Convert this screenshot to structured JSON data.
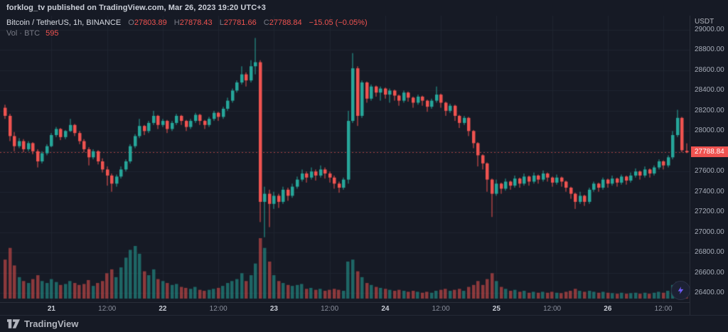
{
  "publish_bar": {
    "text": "forklog_tv published on TradingView.com, Mar 26, 2023 19:20 UTC+3"
  },
  "legend": {
    "symbol": "Bitcoin / TetherUS, 1h, BINANCE",
    "o_label": "O",
    "o": "27803.89",
    "h_label": "H",
    "h": "27878.43",
    "l_label": "L",
    "l": "27781.66",
    "c_label": "C",
    "c": "27788.84",
    "change": "−15.05 (−0.05%)",
    "vol_label": "Vol · BTC",
    "vol_value": "595"
  },
  "price_axis": {
    "currency": "USDT",
    "labels": [
      "29000.00",
      "28800.00",
      "28600.00",
      "28400.00",
      "28200.00",
      "28000.00",
      "27800.00",
      "27600.00",
      "27400.00",
      "27200.00",
      "27000.00",
      "26800.00",
      "26600.00",
      "26400.00"
    ],
    "current_price": "27788.84"
  },
  "footer": {
    "logo_text": "TradingView"
  },
  "icons": {
    "bolt": "lightning-bolt",
    "logo": "tradingview-mark"
  },
  "colors": {
    "bg": "#161a25",
    "grid": "#1f2430",
    "up": "#26a69a",
    "down": "#ef5350",
    "vol_up": "rgba(38,166,154,0.55)",
    "vol_down": "rgba(239,83,80,0.55)",
    "price_line": "#ef5350",
    "badge_bg": "#ef5350",
    "bolt_accent": "#6f5bfa"
  },
  "chart_data": {
    "type": "candlestick",
    "title": "Bitcoin / TetherUS",
    "exchange": "BINANCE",
    "interval": "1h",
    "ylabel": "USDT",
    "ylim": [
      26400,
      29000
    ],
    "grid_step": 200,
    "last_close": 27788.84,
    "candle_pitch": 6.52,
    "candle_width": 4.5,
    "x_ticks": [
      {
        "index": 10,
        "label": "21",
        "major": true
      },
      {
        "index": 22,
        "label": "12:00",
        "major": false
      },
      {
        "index": 34,
        "label": "22",
        "major": true
      },
      {
        "index": 46,
        "label": "12:00",
        "major": false
      },
      {
        "index": 58,
        "label": "23",
        "major": true
      },
      {
        "index": 70,
        "label": "12:00",
        "major": false
      },
      {
        "index": 82,
        "label": "24",
        "major": true
      },
      {
        "index": 94,
        "label": "12:00",
        "major": false
      },
      {
        "index": 106,
        "label": "25",
        "major": true
      },
      {
        "index": 118,
        "label": "12:00",
        "major": false
      },
      {
        "index": 130,
        "label": "26",
        "major": true
      },
      {
        "index": 142,
        "label": "12:00",
        "major": false
      }
    ],
    "candles": [
      [
        28230,
        28260,
        28120,
        28150,
        2000
      ],
      [
        28150,
        28170,
        27900,
        27950,
        2600
      ],
      [
        27950,
        27990,
        27800,
        27850,
        1700
      ],
      [
        27850,
        27930,
        27830,
        27900,
        1100
      ],
      [
        27900,
        27920,
        27790,
        27820,
        900
      ],
      [
        27820,
        27900,
        27800,
        27880,
        800
      ],
      [
        27880,
        27890,
        27770,
        27800,
        1000
      ],
      [
        27800,
        27820,
        27640,
        27700,
        1200
      ],
      [
        27700,
        27800,
        27680,
        27780,
        900
      ],
      [
        27780,
        27870,
        27760,
        27850,
        800
      ],
      [
        27850,
        27980,
        27840,
        27960,
        1000
      ],
      [
        27960,
        28040,
        27940,
        28020,
        850
      ],
      [
        28020,
        28030,
        27910,
        27940,
        700
      ],
      [
        27940,
        28010,
        27920,
        28000,
        750
      ],
      [
        28000,
        28120,
        27990,
        28060,
        900
      ],
      [
        28060,
        28070,
        27950,
        27980,
        800
      ],
      [
        27980,
        28000,
        27870,
        27900,
        700
      ],
      [
        27900,
        27920,
        27790,
        27820,
        750
      ],
      [
        27820,
        27840,
        27660,
        27740,
        950
      ],
      [
        27740,
        27820,
        27720,
        27800,
        650
      ],
      [
        27800,
        27810,
        27670,
        27700,
        800
      ],
      [
        27700,
        27730,
        27590,
        27620,
        900
      ],
      [
        27620,
        27650,
        27460,
        27560,
        1300
      ],
      [
        27560,
        27580,
        27400,
        27480,
        1500
      ],
      [
        27480,
        27570,
        27450,
        27550,
        1100
      ],
      [
        27550,
        27650,
        27530,
        27620,
        1600
      ],
      [
        27620,
        27720,
        27600,
        27700,
        2100
      ],
      [
        27700,
        27870,
        27680,
        27850,
        2500
      ],
      [
        27850,
        27970,
        27830,
        27950,
        2700
      ],
      [
        27950,
        28120,
        27930,
        28050,
        2300
      ],
      [
        28050,
        28060,
        27960,
        28000,
        1400
      ],
      [
        28000,
        28100,
        27980,
        28080,
        1200
      ],
      [
        28080,
        28200,
        28060,
        28150,
        1500
      ],
      [
        28150,
        28160,
        28020,
        28060,
        1000
      ],
      [
        28060,
        28120,
        28040,
        28100,
        900
      ],
      [
        28100,
        28110,
        27980,
        28020,
        800
      ],
      [
        28020,
        28100,
        28000,
        28080,
        700
      ],
      [
        28080,
        28170,
        28060,
        28150,
        750
      ],
      [
        28150,
        28160,
        28060,
        28100,
        600
      ],
      [
        28100,
        28110,
        28000,
        28040,
        550
      ],
      [
        28040,
        28120,
        28020,
        28100,
        500
      ],
      [
        28100,
        28180,
        28080,
        28160,
        600
      ],
      [
        28160,
        28170,
        28060,
        28100,
        450
      ],
      [
        28100,
        28110,
        28020,
        28060,
        400
      ],
      [
        28060,
        28140,
        28040,
        28120,
        450
      ],
      [
        28120,
        28200,
        28100,
        28180,
        500
      ],
      [
        28180,
        28190,
        28100,
        28140,
        550
      ],
      [
        28140,
        28240,
        28120,
        28220,
        650
      ],
      [
        28220,
        28330,
        28200,
        28300,
        800
      ],
      [
        28300,
        28420,
        28280,
        28400,
        900
      ],
      [
        28400,
        28500,
        28380,
        28480,
        1000
      ],
      [
        28480,
        28640,
        28460,
        28560,
        1300
      ],
      [
        28560,
        28580,
        28440,
        28500,
        900
      ],
      [
        28500,
        28700,
        28480,
        28640,
        1200
      ],
      [
        28640,
        28920,
        28560,
        28680,
        1800
      ],
      [
        28680,
        28700,
        27100,
        27300,
        3100
      ],
      [
        27300,
        27450,
        26950,
        27380,
        2600
      ],
      [
        27380,
        27420,
        27050,
        27280,
        1900
      ],
      [
        27280,
        27400,
        27230,
        27360,
        1200
      ],
      [
        27360,
        27380,
        27240,
        27300,
        900
      ],
      [
        27300,
        27450,
        27280,
        27420,
        800
      ],
      [
        27420,
        27440,
        27310,
        27360,
        700
      ],
      [
        27360,
        27480,
        27340,
        27450,
        650
      ],
      [
        27450,
        27550,
        27430,
        27520,
        700
      ],
      [
        27520,
        27620,
        27500,
        27580,
        750
      ],
      [
        27580,
        27600,
        27490,
        27540,
        500
      ],
      [
        27540,
        27640,
        27520,
        27600,
        550
      ],
      [
        27600,
        27620,
        27510,
        27560,
        450
      ],
      [
        27560,
        27660,
        27540,
        27620,
        500
      ],
      [
        27620,
        27640,
        27530,
        27580,
        400
      ],
      [
        27580,
        27600,
        27490,
        27540,
        450
      ],
      [
        27540,
        27560,
        27430,
        27480,
        500
      ],
      [
        27480,
        27500,
        27390,
        27440,
        450
      ],
      [
        27440,
        27540,
        27420,
        27520,
        400
      ],
      [
        27520,
        28200,
        27480,
        28100,
        1900
      ],
      [
        28100,
        28770,
        28080,
        28620,
        2000
      ],
      [
        28620,
        28640,
        28050,
        28150,
        1400
      ],
      [
        28150,
        28500,
        28130,
        28480,
        1100
      ],
      [
        28480,
        28490,
        28280,
        28320,
        800
      ],
      [
        28320,
        28460,
        28300,
        28440,
        700
      ],
      [
        28440,
        28450,
        28340,
        28380,
        600
      ],
      [
        28380,
        28440,
        28300,
        28420,
        550
      ],
      [
        28420,
        28430,
        28320,
        28360,
        500
      ],
      [
        28360,
        28420,
        28280,
        28400,
        450
      ],
      [
        28400,
        28410,
        28300,
        28350,
        400
      ],
      [
        28350,
        28360,
        28250,
        28300,
        450
      ],
      [
        28300,
        28400,
        28280,
        28380,
        400
      ],
      [
        28380,
        28390,
        28290,
        28330,
        350
      ],
      [
        28330,
        28340,
        28230,
        28280,
        400
      ],
      [
        28280,
        28360,
        28260,
        28340,
        350
      ],
      [
        28340,
        28350,
        28250,
        28300,
        300
      ],
      [
        28300,
        28310,
        28190,
        28240,
        350
      ],
      [
        28240,
        28320,
        28220,
        28300,
        300
      ],
      [
        28300,
        28440,
        28280,
        28360,
        400
      ],
      [
        28360,
        28370,
        28230,
        28280,
        450
      ],
      [
        28280,
        28290,
        28150,
        28200,
        500
      ],
      [
        28200,
        28270,
        28180,
        28250,
        400
      ],
      [
        28250,
        28260,
        28100,
        28150,
        450
      ],
      [
        28150,
        28160,
        28030,
        28080,
        500
      ],
      [
        28080,
        28150,
        28060,
        28130,
        400
      ],
      [
        28130,
        28140,
        27950,
        28000,
        600
      ],
      [
        28000,
        28010,
        27830,
        27880,
        700
      ],
      [
        27880,
        27890,
        27650,
        27760,
        900
      ],
      [
        27760,
        27770,
        27620,
        27680,
        700
      ],
      [
        27680,
        27690,
        27400,
        27520,
        1000
      ],
      [
        27520,
        27530,
        27150,
        27380,
        1300
      ],
      [
        27380,
        27520,
        27360,
        27480,
        900
      ],
      [
        27480,
        27490,
        27380,
        27430,
        600
      ],
      [
        27430,
        27530,
        27410,
        27500,
        500
      ],
      [
        27500,
        27510,
        27420,
        27460,
        400
      ],
      [
        27460,
        27560,
        27440,
        27530,
        450
      ],
      [
        27530,
        27540,
        27440,
        27480,
        350
      ],
      [
        27480,
        27580,
        27460,
        27550,
        400
      ],
      [
        27550,
        27560,
        27460,
        27500,
        300
      ],
      [
        27500,
        27590,
        27480,
        27560,
        350
      ],
      [
        27560,
        27570,
        27480,
        27520,
        300
      ],
      [
        27520,
        27610,
        27500,
        27580,
        350
      ],
      [
        27580,
        27590,
        27500,
        27540,
        300
      ],
      [
        27540,
        27550,
        27450,
        27490,
        350
      ],
      [
        27490,
        27570,
        27470,
        27540,
        300
      ],
      [
        27540,
        27550,
        27450,
        27500,
        280
      ],
      [
        27500,
        27510,
        27400,
        27440,
        350
      ],
      [
        27440,
        27450,
        27330,
        27380,
        400
      ],
      [
        27380,
        27390,
        27230,
        27300,
        500
      ],
      [
        27300,
        27400,
        27280,
        27360,
        400
      ],
      [
        27360,
        27370,
        27260,
        27300,
        350
      ],
      [
        27300,
        27440,
        27280,
        27420,
        400
      ],
      [
        27420,
        27500,
        27400,
        27480,
        350
      ],
      [
        27480,
        27490,
        27400,
        27440,
        300
      ],
      [
        27440,
        27540,
        27420,
        27520,
        350
      ],
      [
        27520,
        27530,
        27440,
        27480,
        300
      ],
      [
        27480,
        27560,
        27460,
        27530,
        280
      ],
      [
        27530,
        27540,
        27450,
        27490,
        250
      ],
      [
        27490,
        27570,
        27470,
        27550,
        300
      ],
      [
        27550,
        27560,
        27470,
        27510,
        250
      ],
      [
        27510,
        27590,
        27490,
        27560,
        280
      ],
      [
        27560,
        27630,
        27540,
        27600,
        300
      ],
      [
        27600,
        27610,
        27520,
        27560,
        250
      ],
      [
        27560,
        27650,
        27540,
        27620,
        300
      ],
      [
        27620,
        27630,
        27540,
        27580,
        250
      ],
      [
        27580,
        27660,
        27560,
        27640,
        300
      ],
      [
        27640,
        27720,
        27620,
        27700,
        350
      ],
      [
        27700,
        27710,
        27620,
        27660,
        300
      ],
      [
        27660,
        27760,
        27640,
        27740,
        400
      ],
      [
        27740,
        28000,
        27720,
        27960,
        700
      ],
      [
        27960,
        28210,
        27940,
        28130,
        850
      ],
      [
        28130,
        28140,
        27790,
        27810,
        750
      ],
      [
        27803.89,
        27878.43,
        27781.66,
        27788.84,
        595
      ]
    ]
  }
}
